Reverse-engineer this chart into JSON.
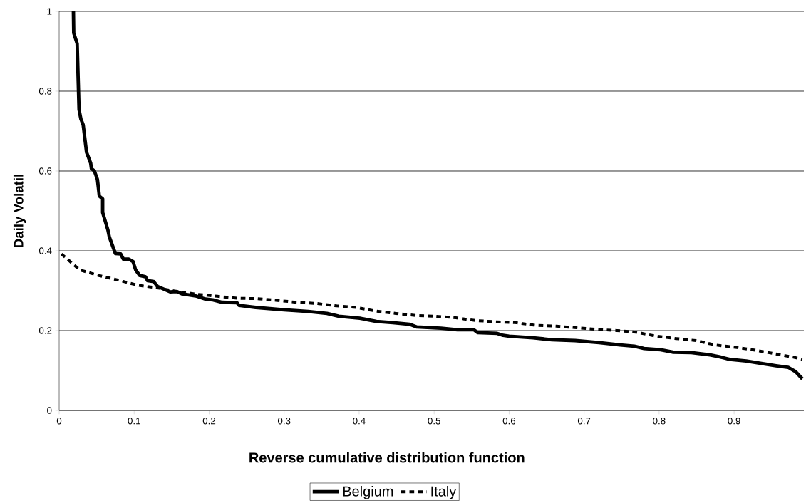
{
  "chart_data": {
    "type": "line",
    "xlabel": "Reverse cumulative distribution function",
    "ylabel": "Daily Volatil",
    "xlim": [
      0,
      0.993
    ],
    "ylim": [
      0,
      1
    ],
    "xticks": [
      0,
      0.1,
      0.2,
      0.3,
      0.4,
      0.5,
      0.6,
      0.7,
      0.8,
      0.9
    ],
    "yticks": [
      0,
      0.2,
      0.4,
      0.6,
      0.8,
      1
    ],
    "grid": "y",
    "legend": "bottom",
    "series": [
      {
        "name": "Belgium",
        "color": "#000000",
        "line_style": "solid",
        "x": [
          0.019,
          0.0194,
          0.024,
          0.0265,
          0.029,
          0.032,
          0.0365,
          0.042,
          0.043,
          0.047,
          0.051,
          0.0536,
          0.058,
          0.058,
          0.065,
          0.067,
          0.075,
          0.082,
          0.0857,
          0.093,
          0.0985,
          0.102,
          0.1075,
          0.115,
          0.118,
          0.126,
          0.131,
          0.148,
          0.157,
          0.164,
          0.182,
          0.195,
          0.205,
          0.217,
          0.237,
          0.24,
          0.262,
          0.3,
          0.332,
          0.357,
          0.373,
          0.401,
          0.423,
          0.445,
          0.467,
          0.477,
          0.509,
          0.531,
          0.553,
          0.558,
          0.584,
          0.592,
          0.6,
          0.632,
          0.657,
          0.688,
          0.72,
          0.748,
          0.767,
          0.78,
          0.802,
          0.818,
          0.843,
          0.868,
          0.881,
          0.894,
          0.916,
          0.938,
          0.956,
          0.972,
          0.982,
          0.991
        ],
        "values": [
          1.0,
          0.946,
          0.919,
          0.754,
          0.73,
          0.716,
          0.647,
          0.62,
          0.606,
          0.6,
          0.579,
          0.537,
          0.53,
          0.496,
          0.452,
          0.434,
          0.393,
          0.392,
          0.379,
          0.379,
          0.373,
          0.352,
          0.338,
          0.335,
          0.325,
          0.323,
          0.311,
          0.297,
          0.298,
          0.292,
          0.287,
          0.279,
          0.277,
          0.271,
          0.27,
          0.263,
          0.258,
          0.252,
          0.248,
          0.243,
          0.236,
          0.231,
          0.223,
          0.22,
          0.216,
          0.209,
          0.206,
          0.202,
          0.202,
          0.195,
          0.193,
          0.188,
          0.186,
          0.182,
          0.177,
          0.175,
          0.17,
          0.164,
          0.161,
          0.155,
          0.152,
          0.146,
          0.145,
          0.139,
          0.134,
          0.128,
          0.124,
          0.117,
          0.112,
          0.108,
          0.097,
          0.079
        ]
      },
      {
        "name": "Italy",
        "color": "#000000",
        "line_style": "dashed",
        "x": [
          0.003,
          0.0275,
          0.053,
          0.078,
          0.104,
          0.131,
          0.157,
          0.184,
          0.211,
          0.239,
          0.264,
          0.289,
          0.316,
          0.343,
          0.37,
          0.396,
          0.422,
          0.449,
          0.475,
          0.502,
          0.529,
          0.556,
          0.583,
          0.608,
          0.636,
          0.663,
          0.69,
          0.717,
          0.744,
          0.769,
          0.796,
          0.823,
          0.849,
          0.875,
          0.902,
          0.928,
          0.954,
          0.98,
          0.991
        ],
        "values": [
          0.392,
          0.352,
          0.338,
          0.327,
          0.314,
          0.307,
          0.298,
          0.291,
          0.286,
          0.281,
          0.28,
          0.276,
          0.271,
          0.268,
          0.262,
          0.258,
          0.249,
          0.243,
          0.238,
          0.236,
          0.232,
          0.225,
          0.222,
          0.22,
          0.213,
          0.211,
          0.207,
          0.203,
          0.2,
          0.196,
          0.186,
          0.18,
          0.175,
          0.164,
          0.158,
          0.151,
          0.142,
          0.133,
          0.128
        ]
      }
    ]
  }
}
